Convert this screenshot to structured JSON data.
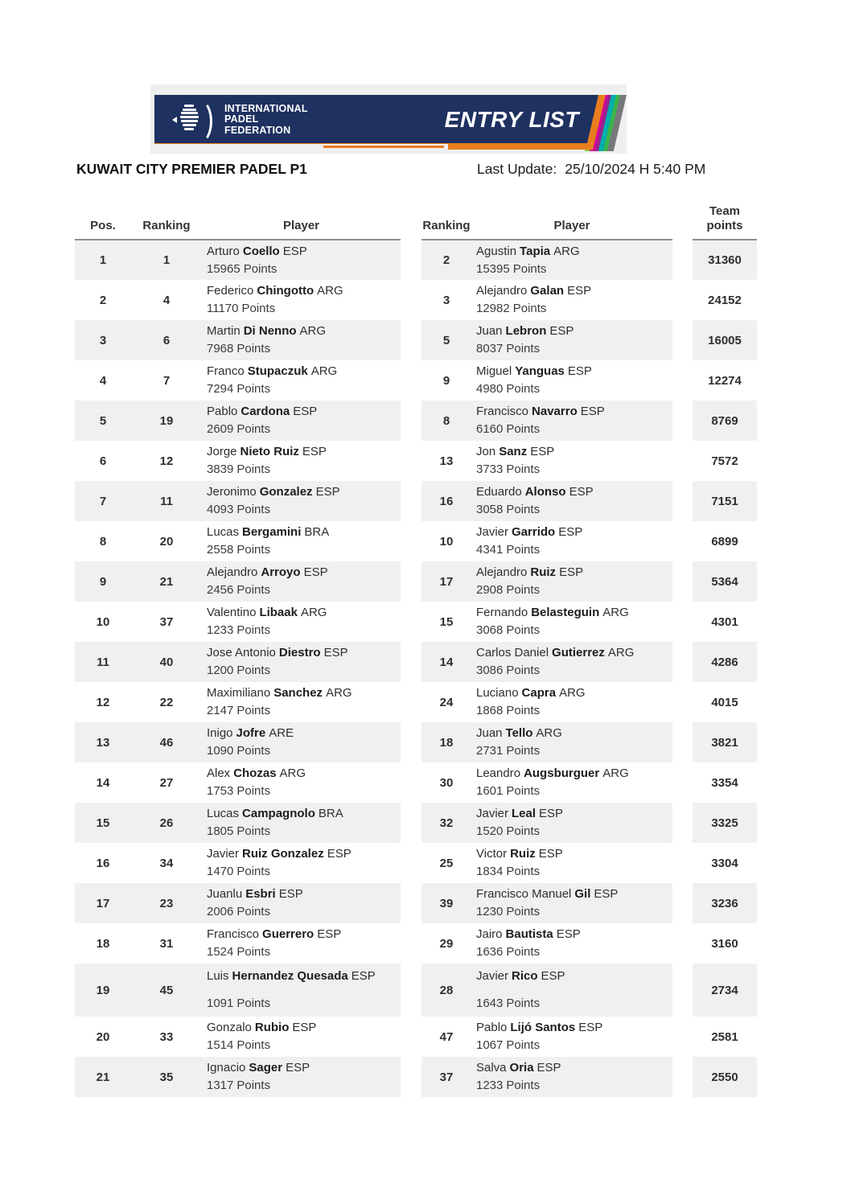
{
  "banner": {
    "logo_lines": [
      "INTERNATIONAL",
      "PADEL",
      "FEDERATION"
    ],
    "entry_list_label": "ENTRY LIST"
  },
  "header": {
    "title": "KUWAIT CITY PREMIER PADEL P1",
    "last_update_label": "Last Update:",
    "last_update_value": "25/10/2024 H 5:40 PM"
  },
  "colors": {
    "navy": "#1e3160",
    "orange": "#e87d1e",
    "row_stripe": "#f0f0f0"
  },
  "table": {
    "headers": {
      "pos": "Pos.",
      "ranking_left": "Ranking",
      "player_left": "Player",
      "ranking_right": "Ranking",
      "player_right": "Player",
      "team_points": "Team points"
    },
    "points_suffix": "Points",
    "rows": [
      {
        "pos": "1",
        "r1": "1",
        "p1": {
          "first": "Arturo",
          "last": "Coello",
          "country": "ESP",
          "points": "15965"
        },
        "r2": "2",
        "p2": {
          "first": "Agustin",
          "last": "Tapia",
          "country": "ARG",
          "points": "15395"
        },
        "team": "31360"
      },
      {
        "pos": "2",
        "r1": "4",
        "p1": {
          "first": "Federico",
          "last": "Chingotto",
          "country": "ARG",
          "points": "11170"
        },
        "r2": "3",
        "p2": {
          "first": "Alejandro",
          "last": "Galan",
          "country": "ESP",
          "points": "12982"
        },
        "team": "24152"
      },
      {
        "pos": "3",
        "r1": "6",
        "p1": {
          "first": "Martin",
          "last": "Di Nenno",
          "country": "ARG",
          "points": "7968"
        },
        "r2": "5",
        "p2": {
          "first": "Juan",
          "last": "Lebron",
          "country": "ESP",
          "points": "8037"
        },
        "team": "16005"
      },
      {
        "pos": "4",
        "r1": "7",
        "p1": {
          "first": "Franco",
          "last": "Stupaczuk",
          "country": "ARG",
          "points": "7294"
        },
        "r2": "9",
        "p2": {
          "first": "Miguel",
          "last": "Yanguas",
          "country": "ESP",
          "points": "4980"
        },
        "team": "12274"
      },
      {
        "pos": "5",
        "r1": "19",
        "p1": {
          "first": "Pablo",
          "last": "Cardona",
          "country": "ESP",
          "points": "2609"
        },
        "r2": "8",
        "p2": {
          "first": "Francisco",
          "last": "Navarro",
          "country": "ESP",
          "points": "6160"
        },
        "team": "8769"
      },
      {
        "pos": "6",
        "r1": "12",
        "p1": {
          "first": "Jorge",
          "last": "Nieto Ruiz",
          "country": "ESP",
          "points": "3839"
        },
        "r2": "13",
        "p2": {
          "first": "Jon",
          "last": "Sanz",
          "country": "ESP",
          "points": "3733"
        },
        "team": "7572"
      },
      {
        "pos": "7",
        "r1": "11",
        "p1": {
          "first": "Jeronimo",
          "last": "Gonzalez",
          "country": "ESP",
          "points": "4093"
        },
        "r2": "16",
        "p2": {
          "first": "Eduardo",
          "last": "Alonso",
          "country": "ESP",
          "points": "3058"
        },
        "team": "7151"
      },
      {
        "pos": "8",
        "r1": "20",
        "p1": {
          "first": "Lucas",
          "last": "Bergamini",
          "country": "BRA",
          "points": "2558"
        },
        "r2": "10",
        "p2": {
          "first": "Javier",
          "last": "Garrido",
          "country": "ESP",
          "points": "4341"
        },
        "team": "6899"
      },
      {
        "pos": "9",
        "r1": "21",
        "p1": {
          "first": "Alejandro",
          "last": "Arroyo",
          "country": "ESP",
          "points": "2456"
        },
        "r2": "17",
        "p2": {
          "first": "Alejandro",
          "last": "Ruiz",
          "country": "ESP",
          "points": "2908"
        },
        "team": "5364"
      },
      {
        "pos": "10",
        "r1": "37",
        "p1": {
          "first": "Valentino",
          "last": "Libaak",
          "country": "ARG",
          "points": "1233"
        },
        "r2": "15",
        "p2": {
          "first": "Fernando",
          "last": "Belasteguin",
          "country": "ARG",
          "points": "3068"
        },
        "team": "4301"
      },
      {
        "pos": "11",
        "r1": "40",
        "p1": {
          "first": "Jose Antonio",
          "last": "Diestro",
          "country": "ESP",
          "points": "1200"
        },
        "r2": "14",
        "p2": {
          "first": "Carlos Daniel",
          "last": "Gutierrez",
          "country": "ARG",
          "points": "3086"
        },
        "team": "4286"
      },
      {
        "pos": "12",
        "r1": "22",
        "p1": {
          "first": "Maximiliano",
          "last": "Sanchez",
          "country": "ARG",
          "points": "2147"
        },
        "r2": "24",
        "p2": {
          "first": "Luciano",
          "last": "Capra",
          "country": "ARG",
          "points": "1868"
        },
        "team": "4015"
      },
      {
        "pos": "13",
        "r1": "46",
        "p1": {
          "first": "Inigo",
          "last": "Jofre",
          "country": "ARE",
          "points": "1090"
        },
        "r2": "18",
        "p2": {
          "first": "Juan",
          "last": "Tello",
          "country": "ARG",
          "points": "2731"
        },
        "team": "3821"
      },
      {
        "pos": "14",
        "r1": "27",
        "p1": {
          "first": "Alex",
          "last": "Chozas",
          "country": "ARG",
          "points": "1753"
        },
        "r2": "30",
        "p2": {
          "first": "Leandro",
          "last": "Augsburguer",
          "country": "ARG",
          "points": "1601"
        },
        "team": "3354"
      },
      {
        "pos": "15",
        "r1": "26",
        "p1": {
          "first": "Lucas",
          "last": "Campagnolo",
          "country": "BRA",
          "points": "1805"
        },
        "r2": "32",
        "p2": {
          "first": "Javier",
          "last": "Leal",
          "country": "ESP",
          "points": "1520"
        },
        "team": "3325"
      },
      {
        "pos": "16",
        "r1": "34",
        "p1": {
          "first": "Javier",
          "last": "Ruiz Gonzalez",
          "country": "ESP",
          "points": "1470"
        },
        "r2": "25",
        "p2": {
          "first": "Victor",
          "last": "Ruiz",
          "country": "ESP",
          "points": "1834"
        },
        "team": "3304"
      },
      {
        "pos": "17",
        "r1": "23",
        "p1": {
          "first": "Juanlu",
          "last": "Esbri",
          "country": "ESP",
          "points": "2006"
        },
        "r2": "39",
        "p2": {
          "first": "Francisco Manuel",
          "last": "Gil",
          "country": "ESP",
          "points": "1230"
        },
        "team": "3236"
      },
      {
        "pos": "18",
        "r1": "31",
        "p1": {
          "first": "Francisco",
          "last": "Guerrero",
          "country": "ESP",
          "points": "1524"
        },
        "r2": "29",
        "p2": {
          "first": "Jairo",
          "last": "Bautista",
          "country": "ESP",
          "points": "1636"
        },
        "team": "3160"
      },
      {
        "pos": "19",
        "r1": "45",
        "tall": true,
        "p1": {
          "first": "Luis",
          "last": "Hernandez Quesada",
          "country": "ESP",
          "points": "1091"
        },
        "r2": "28",
        "p2": {
          "first": "Javier",
          "last": "Rico",
          "country": "ESP",
          "points": "1643"
        },
        "team": "2734"
      },
      {
        "pos": "20",
        "r1": "33",
        "p1": {
          "first": "Gonzalo",
          "last": "Rubio",
          "country": "ESP",
          "points": "1514"
        },
        "r2": "47",
        "p2": {
          "first": "Pablo",
          "last": "Lijó Santos",
          "country": "ESP",
          "points": "1067"
        },
        "team": "2581"
      },
      {
        "pos": "21",
        "r1": "35",
        "p1": {
          "first": "Ignacio",
          "last": "Sager",
          "country": "ESP",
          "points": "1317"
        },
        "r2": "37",
        "p2": {
          "first": "Salva",
          "last": "Oria",
          "country": "ESP",
          "points": "1233"
        },
        "team": "2550"
      }
    ]
  }
}
